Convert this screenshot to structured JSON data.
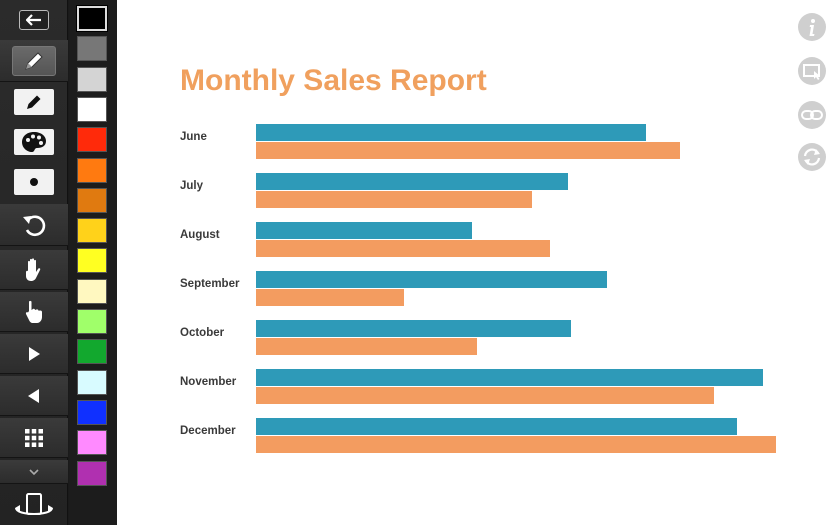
{
  "toolbar": {
    "tools": [
      {
        "name": "back-arrow-icon",
        "interactable": true
      },
      {
        "name": "pen-tool-icon",
        "active": true
      },
      {
        "name": "pencil-icon"
      },
      {
        "name": "palette-icon"
      },
      {
        "name": "brush-dot-icon"
      },
      {
        "name": "undo-icon"
      },
      {
        "name": "hand-icon"
      },
      {
        "name": "pointer-hand-icon"
      },
      {
        "name": "play-forward-icon"
      },
      {
        "name": "play-back-icon"
      },
      {
        "name": "grid-icon"
      },
      {
        "name": "chevron-down-icon"
      },
      {
        "name": "rotate-screen-icon"
      }
    ]
  },
  "palette": {
    "colors": [
      "#000000",
      "#777777",
      "#d4d4d4",
      "#ffffff",
      "#ff2a0a",
      "#ff7a10",
      "#e07a10",
      "#ffd21a",
      "#ffff22",
      "#fff8c0",
      "#a0ff6a",
      "#12a82e",
      "#d8fbff",
      "#1030ff",
      "#ff8aff",
      "#b030b0"
    ],
    "selected_index": 0
  },
  "side_icons": [
    "info-icon",
    "screen-share-icon",
    "link-icon",
    "refresh-icon"
  ],
  "chart_data": {
    "type": "bar",
    "orientation": "horizontal",
    "title": "Monthly Sales Report",
    "categories": [
      "June",
      "July",
      "August",
      "September",
      "October",
      "November",
      "December"
    ],
    "series": [
      {
        "color": "#2e9ab8",
        "values": [
          75,
          60,
          41.5,
          67.5,
          60.5,
          97.5,
          92.5
        ]
      },
      {
        "color": "#f39c60",
        "values": [
          81.5,
          53,
          56.5,
          28.5,
          42.5,
          88,
          100
        ]
      }
    ],
    "xlim": [
      0,
      100
    ],
    "grid": false,
    "legend": "none"
  }
}
